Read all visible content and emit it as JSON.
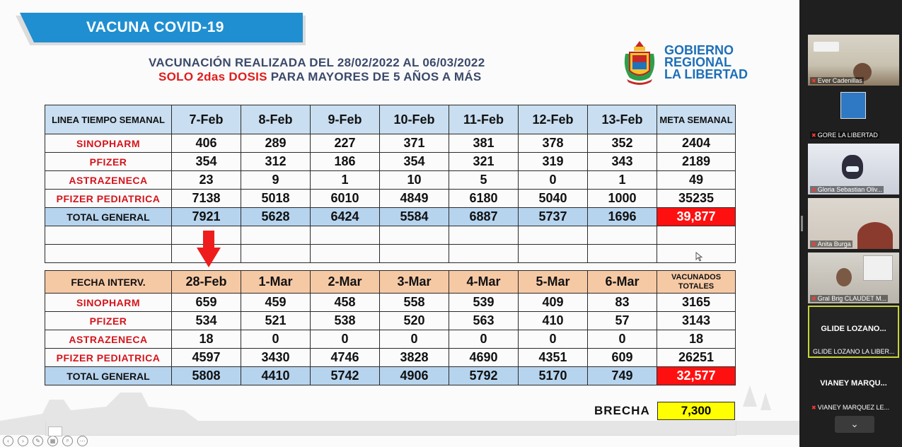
{
  "banner": {
    "title": "VACUNA COVID-19"
  },
  "heading": {
    "line1": "VACUNACIÓN REALIZADA DEL 28/02/2022 AL 06/03/2022",
    "line2_red": "SOLO 2das DOSIS",
    "line2_rest": " PARA MAYORES DE 5 AÑOS A MÁS"
  },
  "logo": {
    "text": "GOBIERNO\nREGIONAL\nLA LIBERTAD"
  },
  "table1": {
    "corner": "LINEA TIEMPO SEMANAL",
    "days": [
      "7-Feb",
      "8-Feb",
      "9-Feb",
      "10-Feb",
      "11-Feb",
      "12-Feb",
      "13-Feb"
    ],
    "last_header": "META SEMANAL",
    "rows": [
      {
        "label": "SINOPHARM",
        "values": [
          "406",
          "289",
          "227",
          "371",
          "381",
          "378",
          "352"
        ],
        "last": "2404"
      },
      {
        "label": "PFIZER",
        "values": [
          "354",
          "312",
          "186",
          "354",
          "321",
          "319",
          "343"
        ],
        "last": "2189"
      },
      {
        "label": "ASTRAZENECA",
        "values": [
          "23",
          "9",
          "1",
          "10",
          "5",
          "0",
          "1"
        ],
        "last": "49"
      },
      {
        "label": "PFIZER PEDIATRICA",
        "values": [
          "7138",
          "5018",
          "6010",
          "4849",
          "6180",
          "5040",
          "1000"
        ],
        "last": "35235"
      }
    ],
    "total": {
      "label": "TOTAL GENERAL",
      "values": [
        "7921",
        "5628",
        "6424",
        "5584",
        "6887",
        "5737",
        "1696"
      ],
      "last": "39,877"
    }
  },
  "table2": {
    "corner": "FECHA INTERV.",
    "days": [
      "28-Feb",
      "1-Mar",
      "2-Mar",
      "3-Mar",
      "4-Mar",
      "5-Mar",
      "6-Mar"
    ],
    "last_header": "VACUNADOS TOTALES",
    "rows": [
      {
        "label": "SINOPHARM",
        "values": [
          "659",
          "459",
          "458",
          "558",
          "539",
          "409",
          "83"
        ],
        "last": "3165"
      },
      {
        "label": "PFIZER",
        "values": [
          "534",
          "521",
          "538",
          "520",
          "563",
          "410",
          "57"
        ],
        "last": "3143"
      },
      {
        "label": "ASTRAZENECA",
        "values": [
          "18",
          "0",
          "0",
          "0",
          "0",
          "0",
          "0"
        ],
        "last": "18"
      },
      {
        "label": "PFIZER PEDIATRICA",
        "values": [
          "4597",
          "3430",
          "4746",
          "3828",
          "4690",
          "4351",
          "609"
        ],
        "last": "26251"
      }
    ],
    "total": {
      "label": "TOTAL GENERAL",
      "values": [
        "5808",
        "4410",
        "5742",
        "4906",
        "5792",
        "5170",
        "749"
      ],
      "last": "32,577"
    }
  },
  "brecha": {
    "label": "BRECHA",
    "value": "7,300"
  },
  "participants": [
    {
      "name": "Ever Cadenillas"
    },
    {
      "name": "GORE LA LIBERTAD"
    },
    {
      "name": "Gloria Sebastian Oliv..."
    },
    {
      "name": "Anita Burga"
    },
    {
      "name": "Gral Brig CLAUDET M..."
    },
    {
      "name": "GLIDE LOZANO LA LIBER...",
      "display": "GLIDE LOZANO..."
    },
    {
      "name": "VIANEY MARQUEZ LE...",
      "display": "VIANEY MARQU..."
    }
  ],
  "colors": {
    "banner": "#1f8fd1",
    "total_red": "#ff1010",
    "brecha_yellow": "#ffff00",
    "header_blue": "#c9def0",
    "header_orange": "#f6c9a5",
    "active_speaker_border": "#c8d43a"
  },
  "icons": [
    "down-arrow-icon",
    "chevron-down-icon",
    "mic-muted-icon",
    "cursor-icon"
  ]
}
